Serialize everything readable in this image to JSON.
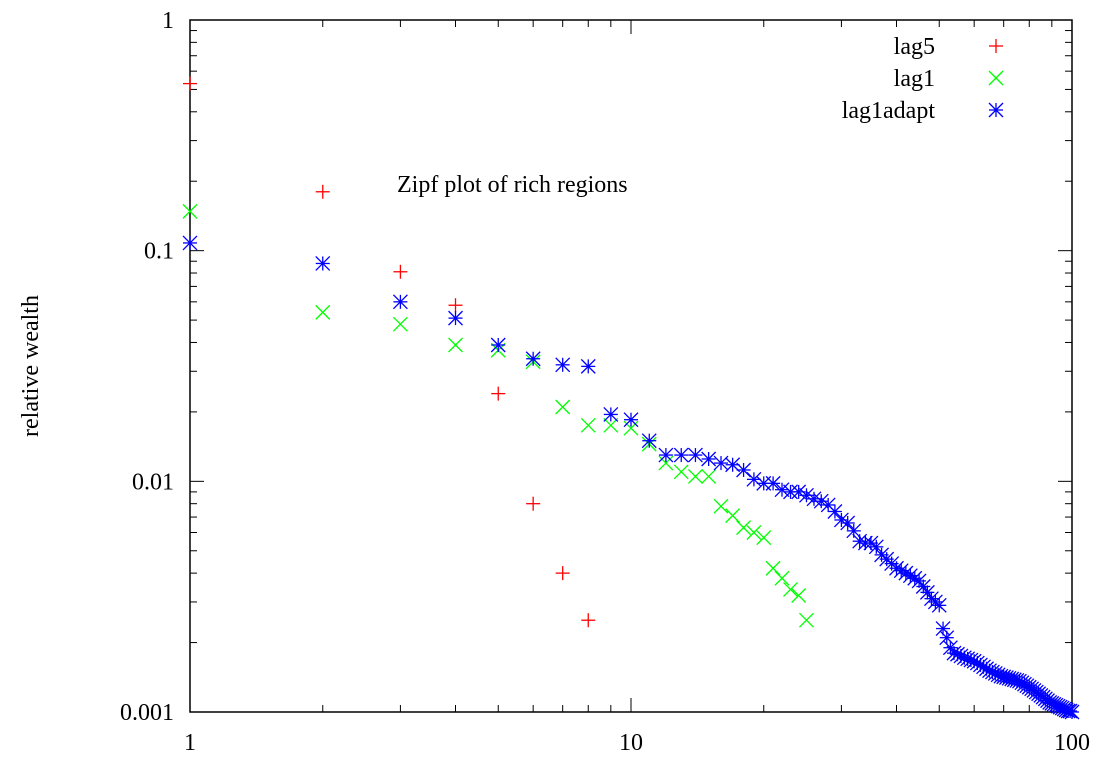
{
  "chart_data": {
    "type": "scatter",
    "title": "",
    "annotation": "Zipf plot of rich regions",
    "xlabel": "",
    "ylabel": "relative wealth",
    "xscale": "log",
    "yscale": "log",
    "xlim": [
      1,
      100
    ],
    "ylim": [
      0.001,
      1
    ],
    "xticks": [
      1,
      10,
      100
    ],
    "xtick_labels": [
      "1",
      "10",
      "100"
    ],
    "yticks": [
      0.001,
      0.01,
      0.1,
      1
    ],
    "ytick_labels": [
      "0.001",
      "0.01",
      "0.1",
      "1"
    ],
    "grid": false,
    "legend_position": "top-right",
    "series": [
      {
        "name": "lag5",
        "marker": "plus",
        "color": "#ff0000",
        "x": [
          1,
          2,
          3,
          4,
          5,
          6,
          7,
          8
        ],
        "y": [
          0.53,
          0.18,
          0.081,
          0.058,
          0.024,
          0.008,
          0.004,
          0.0025
        ]
      },
      {
        "name": "lag1",
        "marker": "cross",
        "color": "#00ff00",
        "x": [
          1,
          2,
          3,
          4,
          5,
          6,
          7,
          8,
          9,
          10,
          11,
          12,
          13,
          14,
          15,
          16,
          17,
          18,
          19,
          20,
          21,
          22,
          23,
          24,
          25
        ],
        "y": [
          0.148,
          0.054,
          0.048,
          0.039,
          0.037,
          0.033,
          0.021,
          0.0175,
          0.0175,
          0.017,
          0.0145,
          0.012,
          0.011,
          0.0105,
          0.0105,
          0.0078,
          0.0071,
          0.0063,
          0.006,
          0.0057,
          0.0042,
          0.0038,
          0.0034,
          0.0032,
          0.0025
        ]
      },
      {
        "name": "lag1adapt",
        "marker": "star",
        "color": "#0000ff",
        "x": [
          1,
          2,
          3,
          4,
          5,
          6,
          7,
          8,
          9,
          10,
          11,
          12,
          13,
          14,
          15,
          16,
          17,
          18,
          19,
          20,
          21,
          22,
          23,
          24,
          25,
          26,
          27,
          28,
          29,
          30,
          31,
          32,
          33,
          34,
          35,
          36,
          37,
          38,
          39,
          40,
          41,
          42,
          43,
          44,
          45,
          46,
          47,
          48,
          49,
          50,
          51,
          52,
          53,
          54,
          55,
          56,
          57,
          58,
          59,
          60,
          61,
          62,
          63,
          64,
          65,
          66,
          67,
          68,
          69,
          70,
          71,
          72,
          73,
          74,
          75,
          76,
          77,
          78,
          79,
          80,
          81,
          82,
          83,
          84,
          85,
          86,
          87,
          88,
          89,
          90,
          91,
          92,
          93,
          94,
          95,
          96,
          97,
          98,
          99,
          100
        ],
        "y": [
          0.108,
          0.088,
          0.06,
          0.051,
          0.039,
          0.034,
          0.032,
          0.0315,
          0.0195,
          0.0185,
          0.015,
          0.013,
          0.013,
          0.013,
          0.0125,
          0.012,
          0.0118,
          0.0112,
          0.0102,
          0.0098,
          0.0098,
          0.0092,
          0.009,
          0.009,
          0.0087,
          0.0084,
          0.0082,
          0.0079,
          0.0074,
          0.0068,
          0.0066,
          0.0061,
          0.0055,
          0.0054,
          0.0054,
          0.0052,
          0.0048,
          0.0046,
          0.0044,
          0.0042,
          0.0041,
          0.004,
          0.0039,
          0.0038,
          0.0037,
          0.0035,
          0.0033,
          0.0031,
          0.003,
          0.0029,
          0.0023,
          0.0021,
          0.0019,
          0.0018,
          0.00178,
          0.00175,
          0.00172,
          0.0017,
          0.00168,
          0.00166,
          0.00163,
          0.0016,
          0.00157,
          0.00154,
          0.00151,
          0.00149,
          0.00147,
          0.00145,
          0.00143,
          0.00142,
          0.00141,
          0.0014,
          0.00139,
          0.00138,
          0.00137,
          0.00136,
          0.00134,
          0.00132,
          0.0013,
          0.00128,
          0.00126,
          0.00124,
          0.00122,
          0.0012,
          0.00118,
          0.00116,
          0.00114,
          0.00112,
          0.0011,
          0.00109,
          0.00108,
          0.00107,
          0.00106,
          0.00105,
          0.00104,
          0.00103,
          0.00102,
          0.00101,
          0.00101,
          0.001
        ]
      }
    ]
  }
}
